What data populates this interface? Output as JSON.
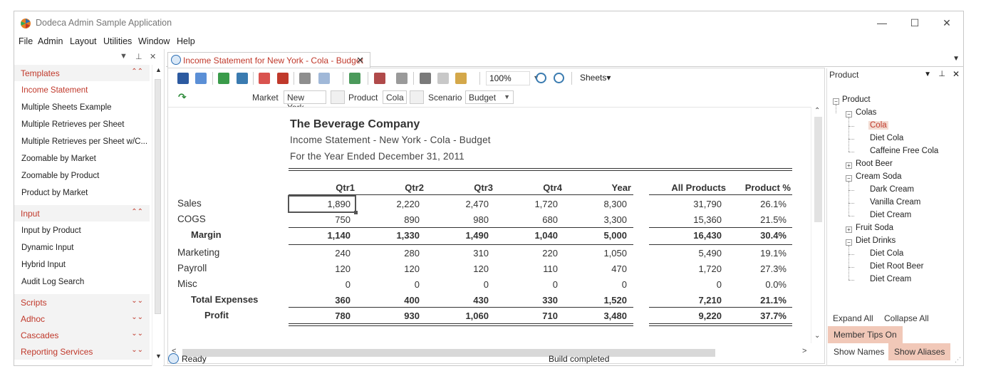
{
  "app": {
    "title": "Dodeca Admin Sample Application"
  },
  "window_controls": {
    "minimize": "—",
    "maximize": "☐",
    "close": "✕"
  },
  "menu": [
    "File",
    "Admin",
    "Layout",
    "Utilities",
    "Window",
    "Help"
  ],
  "left_panel": {
    "groups": [
      {
        "title": "Templates",
        "expanded": true,
        "items": [
          "Income Statement",
          "Multiple Sheets Example",
          "Multiple Retrieves per Sheet",
          "Multiple Retrieves per Sheet w/C...",
          "Zoomable by Market",
          "Zoomable by Product",
          "Product by Market"
        ]
      },
      {
        "title": "Input",
        "expanded": true,
        "items": [
          "Input by Product",
          "Dynamic Input",
          "Hybrid Input",
          "Audit Log Search"
        ]
      },
      {
        "title": "Scripts",
        "expanded": false,
        "items": []
      },
      {
        "title": "Adhoc",
        "expanded": false,
        "items": []
      },
      {
        "title": "Cascades",
        "expanded": false,
        "items": []
      },
      {
        "title": "Reporting Services",
        "expanded": false,
        "items": []
      }
    ],
    "active_item": "Income Statement"
  },
  "document_tab": {
    "label": "Income Statement for New York - Cola - Budget",
    "close": "✕"
  },
  "toolbar": {
    "zoom": "100%",
    "sheets_label": "Sheets▾"
  },
  "pov": {
    "market_label": "Market",
    "market_value": "New York",
    "product_label": "Product",
    "product_value": "Cola",
    "scenario_label": "Scenario",
    "scenario_value": "Budget"
  },
  "report": {
    "company": "The Beverage Company",
    "subtitle1": "Income Statement - New York - Cola - Budget",
    "subtitle2": "For the Year Ended December 31, 2011",
    "columns": [
      "Qtr1",
      "Qtr2",
      "Qtr3",
      "Qtr4",
      "Year",
      "All Products",
      "Product %"
    ],
    "rows": [
      {
        "label": "Sales",
        "bold": false,
        "values": [
          "1,890",
          "2,220",
          "2,470",
          "1,720",
          "8,300",
          "31,790",
          "26.1%"
        ]
      },
      {
        "label": "COGS",
        "bold": false,
        "values": [
          "750",
          "890",
          "980",
          "680",
          "3,300",
          "15,360",
          "21.5%"
        ]
      },
      {
        "label": "Margin",
        "bold": true,
        "values": [
          "1,140",
          "1,330",
          "1,490",
          "1,040",
          "5,000",
          "16,430",
          "30.4%"
        ]
      },
      {
        "label": "Marketing",
        "bold": false,
        "values": [
          "240",
          "280",
          "310",
          "220",
          "1,050",
          "5,490",
          "19.1%"
        ]
      },
      {
        "label": "Payroll",
        "bold": false,
        "values": [
          "120",
          "120",
          "120",
          "110",
          "470",
          "1,720",
          "27.3%"
        ]
      },
      {
        "label": "Misc",
        "bold": false,
        "values": [
          "0",
          "0",
          "0",
          "0",
          "0",
          "0",
          "0.0%"
        ]
      },
      {
        "label": "Total Expenses",
        "bold": true,
        "values": [
          "360",
          "400",
          "430",
          "330",
          "1,520",
          "7,210",
          "21.1%"
        ]
      },
      {
        "label": "Profit",
        "bold": true,
        "values": [
          "780",
          "930",
          "1,060",
          "710",
          "3,480",
          "9,220",
          "37.7%"
        ]
      }
    ]
  },
  "status": {
    "ready": "Ready",
    "build": "Build completed"
  },
  "right_panel": {
    "title": "Product",
    "tree": {
      "root": "Product",
      "colas": "Colas",
      "cola": "Cola",
      "diet_cola": "Diet Cola",
      "caffeine_free_cola": "Caffeine Free Cola",
      "root_beer": "Root Beer",
      "cream_soda": "Cream Soda",
      "dark_cream": "Dark Cream",
      "vanilla_cream": "Vanilla Cream",
      "diet_cream": "Diet Cream",
      "fruit_soda": "Fruit Soda",
      "diet_drinks": "Diet Drinks",
      "dd_diet_cola": "Diet Cola",
      "dd_diet_root_beer": "Diet Root Beer",
      "dd_diet_cream": "Diet Cream"
    },
    "expand_all": "Expand All",
    "collapse_all": "Collapse All",
    "member_tips": "Member Tips On",
    "show_names": "Show Names",
    "show_aliases": "Show Aliases"
  }
}
